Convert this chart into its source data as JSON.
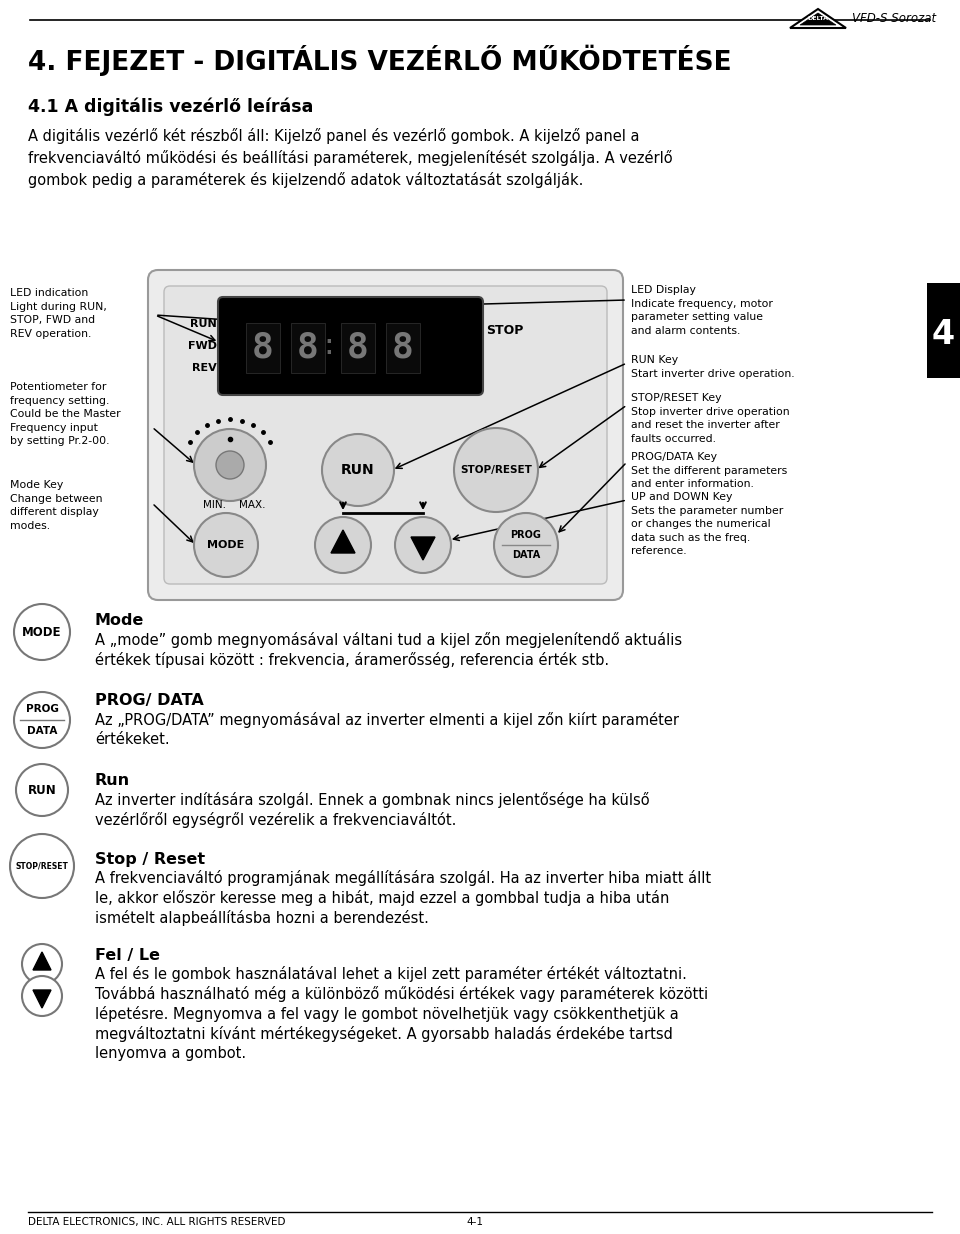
{
  "title": "4. FEJEZET - DIGITÁLIS VEZÉRLŐ MŰKÖDTETÉSE",
  "subtitle": "4.1 A digitális vezérlő leírása",
  "para1_line1": "A digitális vezérlő két részből áll: Kijelő panel és vezérlő gombok. A kijelő panel a",
  "para1_line2": "frekvenciaváltó működési és beállítási paraméterek, megjelenítését szolgálja. A vezérlő",
  "para1_line3": "gombok pedig a paraméterek és kijel zendő adatok változtatását szolgálják.",
  "header_text": "VFD-S Sorozat",
  "chapter_num": "4",
  "footer_left": "DELTA ELECTRONICS, INC. ALL RIGHTS RESERVED",
  "footer_right": "4-1",
  "bg_color": "#ffffff",
  "text_color": "#000000",
  "led_label": "LED indication\nLight during RUN,\nSTOP, FWD and\nREV operation.",
  "pot_label": "Potentiometer for\nfrequency setting.\nCould be the Master\nFrequency input\nby setting Pr.2-00.",
  "mode_label": "Mode Key\nChange between\ndifferent display\nmodes.",
  "display_label": "LED Display\nIndicate frequency, motor\nparameter setting value\nand alarm contents.",
  "run_key_label": "RUN Key\nStart inverter drive operation.",
  "stop_key_label": "STOP/RESET Key\nStop inverter drive operation\nand reset the inverter after\nfaults occurred.",
  "prog_key_label": "PROG/DATA Key\nSet the different parameters\nand enter information.",
  "updown_key_label": "UP and DOWN Key\nSets the parameter number\nor changes the numerical\ndata such as the freq.\nreference.",
  "mode_title": "Mode",
  "mode_text1": "A „mode” gomb megnyomásával váltani tud a kijel zőn megjelenítendő aktuális",
  "mode_text2": "értékek típusai között : frekvencia, áramerősség, referencia érték stb.",
  "prog_title": "PROG/ DATA",
  "prog_text1": "Az „PROG/DATA” megnyomásával az inverter elmenti a kijel zőn kiírt paraméter",
  "prog_text2": "értékeket.",
  "run_title": "Run",
  "run_text1": "Az inverter indítására szolgál. Ennek a gombnak nincs jelentősége ha külső",
  "run_text2": "vezérlőről egységről vezérelik a frekvenciaváltót.",
  "stop_title": "Stop / Reset",
  "stop_text1": "A frekvenciaváltó programjának megállítására szolgál. Ha az inverter hiba miatt állt",
  "stop_text2": "le, akkor először keresse meg a hibát, majd ezzel a gombbal tudja a hiba után",
  "stop_text3": "ismételt alapbeállításba hozni a berendezést.",
  "fel_title": "Fel / Le",
  "fel_text1": "A fel és le gombok használatával lehet a kijel zett paraméter értékét változtatni.",
  "fel_text2": "Továbbá használható még a különböző működési értékek vagy paraméterek közötti",
  "fel_text3": "lépetésre. Megnyomva a fel vagy le gombot növelhetjük vagy csökkenthetjük a",
  "fel_text4": "megváltoztatni kívánt mértékegységeket. A gyorsabb haladás érdekébe tartsd",
  "fel_text5": "lenyomva a gombot."
}
